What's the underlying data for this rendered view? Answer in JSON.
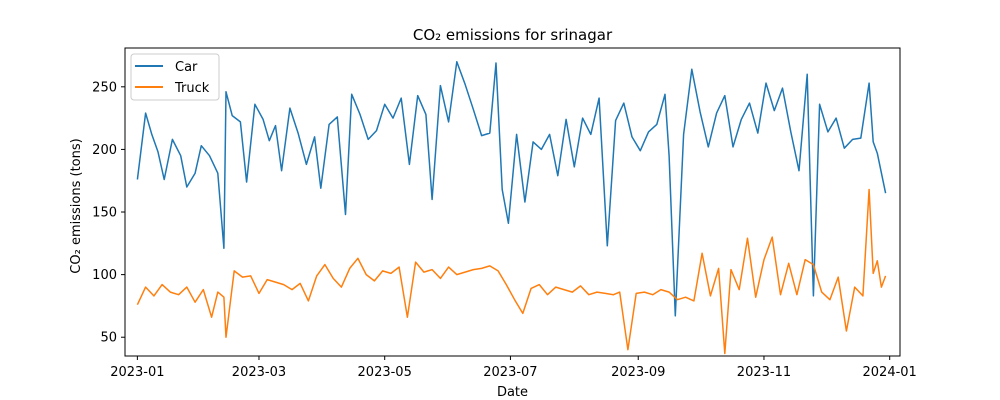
{
  "chart_data": {
    "type": "line",
    "title": "CO₂ emissions for srinagar",
    "xlabel": "Date",
    "ylabel": "CO₂ emissions (tons)",
    "xlim": [
      "2022-12-26",
      "2024-01-06"
    ],
    "ylim": [
      35,
      281
    ],
    "x_ticks": [
      "2023-01",
      "2023-03",
      "2023-05",
      "2023-07",
      "2023-09",
      "2023-11",
      "2024-01"
    ],
    "y_ticks": [
      50,
      100,
      150,
      200,
      250
    ],
    "grid": false,
    "legend_position": "upper-left",
    "colors": {
      "Car": "#1f77b4",
      "Truck": "#ff7f0e"
    },
    "series": [
      {
        "name": "Car",
        "x": [
          "2023-01-01",
          "2023-01-05",
          "2023-01-08",
          "2023-01-11",
          "2023-01-14",
          "2023-01-18",
          "2023-01-22",
          "2023-01-25",
          "2023-01-29",
          "2023-02-01",
          "2023-02-05",
          "2023-02-09",
          "2023-02-12",
          "2023-02-13",
          "2023-02-16",
          "2023-02-20",
          "2023-02-23",
          "2023-02-27",
          "2023-03-03",
          "2023-03-06",
          "2023-03-09",
          "2023-03-12",
          "2023-03-16",
          "2023-03-20",
          "2023-03-24",
          "2023-03-28",
          "2023-03-31",
          "2023-04-04",
          "2023-04-08",
          "2023-04-12",
          "2023-04-15",
          "2023-04-19",
          "2023-04-23",
          "2023-04-27",
          "2023-05-01",
          "2023-05-05",
          "2023-05-09",
          "2023-05-13",
          "2023-05-17",
          "2023-05-21",
          "2023-05-24",
          "2023-05-28",
          "2023-06-01",
          "2023-06-05",
          "2023-06-09",
          "2023-06-13",
          "2023-06-17",
          "2023-06-21",
          "2023-06-24",
          "2023-06-27",
          "2023-06-30",
          "2023-07-04",
          "2023-07-08",
          "2023-07-12",
          "2023-07-16",
          "2023-07-20",
          "2023-07-24",
          "2023-07-28",
          "2023-08-01",
          "2023-08-05",
          "2023-08-09",
          "2023-08-13",
          "2023-08-17",
          "2023-08-21",
          "2023-08-25",
          "2023-08-29",
          "2023-09-02",
          "2023-09-06",
          "2023-09-10",
          "2023-09-14",
          "2023-09-16",
          "2023-09-19",
          "2023-09-23",
          "2023-09-27",
          "2023-10-01",
          "2023-10-05",
          "2023-10-09",
          "2023-10-13",
          "2023-10-17",
          "2023-10-21",
          "2023-10-25",
          "2023-10-29",
          "2023-11-02",
          "2023-11-06",
          "2023-11-10",
          "2023-11-14",
          "2023-11-18",
          "2023-11-22",
          "2023-11-25",
          "2023-11-28",
          "2023-12-02",
          "2023-12-06",
          "2023-12-10",
          "2023-12-14",
          "2023-12-18",
          "2023-12-22",
          "2023-12-24",
          "2023-12-26",
          "2023-12-30"
        ],
        "values": [
          176,
          229,
          212,
          198,
          176,
          208,
          195,
          170,
          181,
          203,
          195,
          181,
          121,
          246,
          227,
          222,
          174,
          236,
          224,
          207,
          219,
          183,
          233,
          213,
          188,
          210,
          169,
          220,
          226,
          148,
          244,
          228,
          208,
          215,
          236,
          225,
          241,
          188,
          243,
          228,
          160,
          251,
          222,
          270,
          252,
          232,
          211,
          213,
          269,
          168,
          141,
          212,
          158,
          206,
          200,
          212,
          179,
          224,
          186,
          225,
          212,
          241,
          123,
          223,
          237,
          210,
          199,
          214,
          220,
          244,
          195,
          67,
          212,
          264,
          230,
          202,
          229,
          243,
          202,
          224,
          237,
          213,
          253,
          231,
          249,
          214,
          183,
          260,
          83,
          236,
          214,
          225,
          201,
          208,
          209,
          253,
          206,
          197,
          165
        ]
      },
      {
        "name": "Truck",
        "x": [
          "2023-01-01",
          "2023-01-05",
          "2023-01-09",
          "2023-01-13",
          "2023-01-17",
          "2023-01-21",
          "2023-01-25",
          "2023-01-29",
          "2023-02-02",
          "2023-02-06",
          "2023-02-09",
          "2023-02-12",
          "2023-02-13",
          "2023-02-17",
          "2023-02-21",
          "2023-02-25",
          "2023-03-01",
          "2023-03-05",
          "2023-03-09",
          "2023-03-13",
          "2023-03-17",
          "2023-03-21",
          "2023-03-25",
          "2023-03-29",
          "2023-04-02",
          "2023-04-06",
          "2023-04-10",
          "2023-04-14",
          "2023-04-18",
          "2023-04-22",
          "2023-04-26",
          "2023-04-30",
          "2023-05-04",
          "2023-05-08",
          "2023-05-12",
          "2023-05-16",
          "2023-05-20",
          "2023-05-24",
          "2023-05-28",
          "2023-06-01",
          "2023-06-05",
          "2023-06-09",
          "2023-06-13",
          "2023-06-17",
          "2023-06-21",
          "2023-06-25",
          "2023-06-29",
          "2023-07-03",
          "2023-07-07",
          "2023-07-11",
          "2023-07-15",
          "2023-07-19",
          "2023-07-23",
          "2023-07-27",
          "2023-07-31",
          "2023-08-04",
          "2023-08-08",
          "2023-08-12",
          "2023-08-16",
          "2023-08-20",
          "2023-08-23",
          "2023-08-27",
          "2023-08-31",
          "2023-09-04",
          "2023-09-08",
          "2023-09-12",
          "2023-09-16",
          "2023-09-20",
          "2023-09-24",
          "2023-09-28",
          "2023-10-02",
          "2023-10-06",
          "2023-10-10",
          "2023-10-13",
          "2023-10-16",
          "2023-10-20",
          "2023-10-24",
          "2023-10-28",
          "2023-11-01",
          "2023-11-05",
          "2023-11-09",
          "2023-11-13",
          "2023-11-17",
          "2023-11-21",
          "2023-11-25",
          "2023-11-29",
          "2023-12-03",
          "2023-12-07",
          "2023-12-11",
          "2023-12-15",
          "2023-12-19",
          "2023-12-22",
          "2023-12-24",
          "2023-12-26",
          "2023-12-28",
          "2023-12-30"
        ],
        "values": [
          76,
          90,
          83,
          92,
          86,
          84,
          90,
          78,
          88,
          66,
          86,
          82,
          50,
          103,
          98,
          99,
          85,
          96,
          94,
          92,
          88,
          93,
          79,
          99,
          108,
          97,
          90,
          105,
          113,
          100,
          95,
          103,
          101,
          106,
          66,
          110,
          102,
          104,
          97,
          106,
          100,
          102,
          104,
          105,
          107,
          103,
          92,
          80,
          69,
          89,
          92,
          84,
          90,
          88,
          86,
          91,
          84,
          86,
          85,
          84,
          86,
          40,
          85,
          86,
          84,
          88,
          86,
          80,
          82,
          79,
          117,
          83,
          105,
          37,
          104,
          88,
          129,
          82,
          112,
          130,
          84,
          109,
          84,
          112,
          108,
          86,
          80,
          98,
          55,
          90,
          83,
          168,
          101,
          111,
          90,
          99
        ]
      }
    ]
  }
}
